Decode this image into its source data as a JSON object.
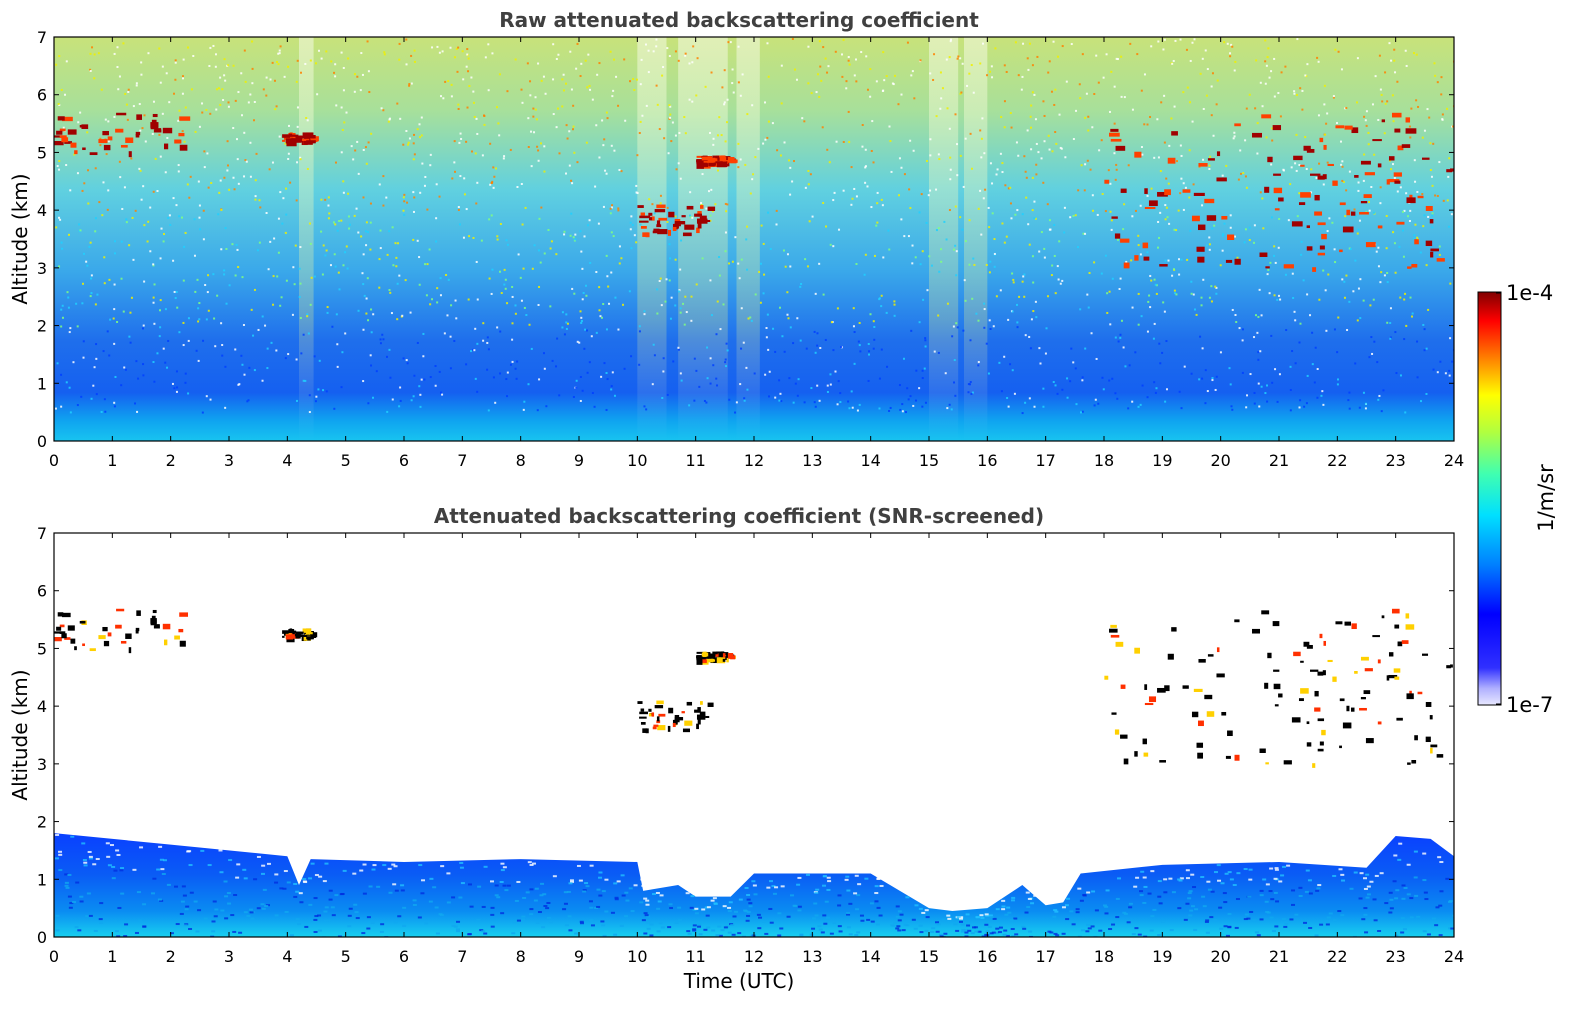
{
  "chart_data": [
    {
      "type": "heatmap",
      "title": "Raw attenuated backscattering coefficient",
      "xlabel": "",
      "ylabel": "Altitude (km)",
      "xlim": [
        0,
        24
      ],
      "ylim": [
        0,
        7
      ],
      "xticks": [
        "0",
        "1",
        "2",
        "3",
        "4",
        "5",
        "6",
        "7",
        "8",
        "9",
        "10",
        "11",
        "12",
        "13",
        "14",
        "15",
        "16",
        "17",
        "18",
        "19",
        "20",
        "21",
        "22",
        "23",
        "24"
      ],
      "yticks": [
        "0",
        "1",
        "2",
        "3",
        "4",
        "5",
        "6",
        "7"
      ],
      "colorscale": "jet",
      "features": {
        "boundary_layer_top_km": 0.8,
        "noise": "increases with altitude; strong vertical noise bands near 4.3, 10-11.6, 15-16 UTC",
        "cloud_layers": [
          {
            "t": [
              0.0,
              2.2
            ],
            "z": [
              5.0,
              5.7
            ],
            "label": "cloud"
          },
          {
            "t": [
              3.9,
              4.4
            ],
            "z": [
              5.2,
              5.35
            ],
            "label": "cloud"
          },
          {
            "t": [
              10.0,
              11.3
            ],
            "z": [
              3.6,
              4.1
            ],
            "label": "cloud"
          },
          {
            "t": [
              11.0,
              11.6
            ],
            "z": [
              4.8,
              4.95
            ],
            "label": "cloud"
          },
          {
            "t": [
              18.0,
              24.0
            ],
            "z": [
              3.0,
              5.7
            ],
            "label": "cloud fragments"
          }
        ]
      }
    },
    {
      "type": "heatmap",
      "title": "Attenuated backscattering coefficient (SNR-screened)",
      "xlabel": "Time (UTC)",
      "ylabel": "Altitude (km)",
      "xlim": [
        0,
        24
      ],
      "ylim": [
        0,
        7
      ],
      "xticks": [
        "0",
        "1",
        "2",
        "3",
        "4",
        "5",
        "6",
        "7",
        "8",
        "9",
        "10",
        "11",
        "12",
        "13",
        "14",
        "15",
        "16",
        "17",
        "18",
        "19",
        "20",
        "21",
        "22",
        "23",
        "24"
      ],
      "yticks": [
        "0",
        "1",
        "2",
        "3",
        "4",
        "5",
        "6",
        "7"
      ],
      "colorscale": "jet",
      "features": {
        "screened_top_km": [
          [
            0,
            1.8
          ],
          [
            2,
            1.6
          ],
          [
            4,
            1.4
          ],
          [
            4.2,
            0.9
          ],
          [
            4.4,
            1.35
          ],
          [
            6,
            1.3
          ],
          [
            8,
            1.35
          ],
          [
            10,
            1.3
          ],
          [
            10.1,
            0.8
          ],
          [
            10.7,
            0.9
          ],
          [
            11,
            0.7
          ],
          [
            11.6,
            0.7
          ],
          [
            12,
            1.1
          ],
          [
            14,
            1.1
          ],
          [
            15,
            0.5
          ],
          [
            15.4,
            0.45
          ],
          [
            16,
            0.5
          ],
          [
            16.6,
            0.9
          ],
          [
            17,
            0.55
          ],
          [
            17.3,
            0.6
          ],
          [
            17.6,
            1.1
          ],
          [
            19,
            1.25
          ],
          [
            21,
            1.3
          ],
          [
            22.5,
            1.2
          ],
          [
            23,
            1.75
          ],
          [
            23.6,
            1.7
          ],
          [
            24,
            1.4
          ]
        ]
      }
    }
  ],
  "colorbar": {
    "max_label": "1e-4",
    "min_label": "1e-7",
    "unit_label": "1/m/sr",
    "scale": "log"
  }
}
